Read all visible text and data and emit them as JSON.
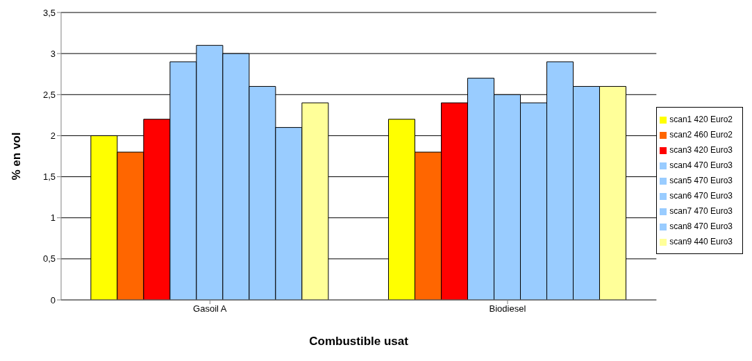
{
  "chart_data": {
    "type": "bar",
    "xlabel": "Combustible usat",
    "ylabel": "% en vol",
    "categories": [
      "Gasoil A",
      "Biodiesel"
    ],
    "series": [
      {
        "name": "scan1 420 Euro2",
        "color": "#ffff00",
        "values": [
          2.0,
          2.2
        ]
      },
      {
        "name": "scan2 460 Euro2",
        "color": "#ff6600",
        "values": [
          1.8,
          1.8
        ]
      },
      {
        "name": "scan3 420 Euro3",
        "color": "#ff0000",
        "values": [
          2.2,
          2.4
        ]
      },
      {
        "name": "scan4 470 Euro3",
        "color": "#99ccff",
        "values": [
          2.9,
          2.7
        ]
      },
      {
        "name": "scan5 470 Euro3",
        "color": "#99ccff",
        "values": [
          3.1,
          2.5
        ]
      },
      {
        "name": "scan6 470 Euro3",
        "color": "#99ccff",
        "values": [
          3.0,
          2.4
        ]
      },
      {
        "name": "scan7 470 Euro3",
        "color": "#99ccff",
        "values": [
          2.6,
          2.9
        ]
      },
      {
        "name": "scan8 470 Euro3",
        "color": "#99ccff",
        "values": [
          2.1,
          2.6
        ]
      },
      {
        "name": "scan9 440 Euro3",
        "color": "#ffff99",
        "values": [
          2.4,
          2.6
        ]
      }
    ],
    "ylim": [
      0,
      3.5
    ],
    "yticks": [
      0,
      {
        "value": 0.5,
        "label": "0,5"
      },
      1,
      {
        "value": 1.5,
        "label": "1,5"
      },
      2,
      {
        "value": 2.5,
        "label": "2,5"
      },
      3,
      {
        "value": 3.5,
        "label": "3,5"
      }
    ],
    "grid": "y",
    "legend": "right"
  }
}
